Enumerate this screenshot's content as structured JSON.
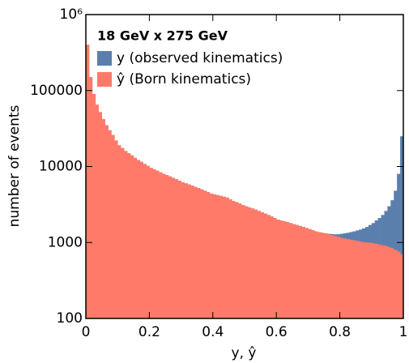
{
  "chart_data": {
    "type": "histogram",
    "legend_title": "18 GeV x 275 GeV",
    "xlabel": "y, ŷ",
    "ylabel": "number of events",
    "log_y": true,
    "xlim": [
      0,
      1
    ],
    "xticks": [
      0,
      0.2,
      0.4,
      0.6,
      0.8,
      1
    ],
    "ylim": [
      100,
      1000000
    ],
    "yticks": [
      100,
      1000,
      10000,
      100000,
      {
        "value": 1000000,
        "label": "10⁶"
      }
    ],
    "bins": [
      0,
      0.01,
      0.02,
      0.03,
      0.04,
      0.05,
      0.06,
      0.07,
      0.08,
      0.09,
      0.1,
      0.11,
      0.12,
      0.13,
      0.14,
      0.15,
      0.16,
      0.17,
      0.18,
      0.19,
      0.2,
      0.21,
      0.22,
      0.23,
      0.24,
      0.25,
      0.26,
      0.27,
      0.28,
      0.29,
      0.3,
      0.31,
      0.32,
      0.33,
      0.34,
      0.35,
      0.36,
      0.37,
      0.38,
      0.39,
      0.4,
      0.41,
      0.42,
      0.43,
      0.44,
      0.45,
      0.46,
      0.47,
      0.48,
      0.49,
      0.5,
      0.51,
      0.52,
      0.53,
      0.54,
      0.55,
      0.56,
      0.57,
      0.58,
      0.59,
      0.6,
      0.61,
      0.62,
      0.63,
      0.64,
      0.65,
      0.66,
      0.67,
      0.68,
      0.69,
      0.7,
      0.71,
      0.72,
      0.73,
      0.74,
      0.75,
      0.76,
      0.77,
      0.78,
      0.79,
      0.8,
      0.81,
      0.82,
      0.83,
      0.84,
      0.85,
      0.86,
      0.87,
      0.88,
      0.89,
      0.9,
      0.91,
      0.92,
      0.93,
      0.94,
      0.95,
      0.96,
      0.97,
      0.98,
      0.99,
      1
    ],
    "series": [
      {
        "name": "y (observed kinematics)",
        "color": "#5b7fad",
        "values": [
          400000,
          150000,
          90000,
          65000,
          52000,
          42000,
          35000,
          30000,
          26000,
          22000,
          19000,
          17500,
          16000,
          15000,
          14000,
          13000,
          12200,
          11500,
          10800,
          10200,
          9600,
          9200,
          8800,
          8400,
          8000,
          7700,
          7400,
          7100,
          6800,
          6500,
          6200,
          6000,
          5800,
          5600,
          5400,
          5200,
          5000,
          4800,
          4600,
          4400,
          4300,
          4200,
          4100,
          4000,
          3900,
          3700,
          3500,
          3400,
          3250,
          3100,
          3000,
          2900,
          2800,
          2700,
          2600,
          2500,
          2400,
          2300,
          2200,
          2100,
          2000,
          1950,
          1900,
          1850,
          1800,
          1750,
          1700,
          1650,
          1600,
          1550,
          1500,
          1450,
          1400,
          1370,
          1340,
          1320,
          1300,
          1290,
          1280,
          1280,
          1300,
          1320,
          1340,
          1370,
          1400,
          1440,
          1480,
          1530,
          1600,
          1700,
          1800,
          1950,
          2100,
          2300,
          2600,
          3000,
          3600,
          4800,
          8000,
          25000
        ]
      },
      {
        "name": "ŷ (Born kinematics)",
        "color": "#ff7a69",
        "values": [
          400000,
          150000,
          90000,
          65000,
          52000,
          42000,
          35000,
          30000,
          26000,
          22000,
          19000,
          17500,
          16000,
          15000,
          14000,
          13000,
          12200,
          11500,
          10800,
          10200,
          9600,
          9200,
          8800,
          8400,
          8000,
          7700,
          7400,
          7100,
          6800,
          6500,
          6200,
          6000,
          5800,
          5600,
          5400,
          5200,
          5000,
          4800,
          4600,
          4400,
          4300,
          4200,
          4100,
          4000,
          3900,
          3700,
          3500,
          3400,
          3250,
          3100,
          3000,
          2900,
          2800,
          2700,
          2600,
          2500,
          2400,
          2300,
          2200,
          2100,
          2000,
          1950,
          1900,
          1850,
          1800,
          1750,
          1700,
          1650,
          1600,
          1550,
          1500,
          1450,
          1400,
          1370,
          1340,
          1310,
          1280,
          1250,
          1220,
          1190,
          1150,
          1130,
          1110,
          1090,
          1070,
          1050,
          1030,
          1010,
          1000,
          990,
          980,
          960,
          940,
          920,
          900,
          870,
          840,
          800,
          760,
          700
        ]
      }
    ]
  }
}
